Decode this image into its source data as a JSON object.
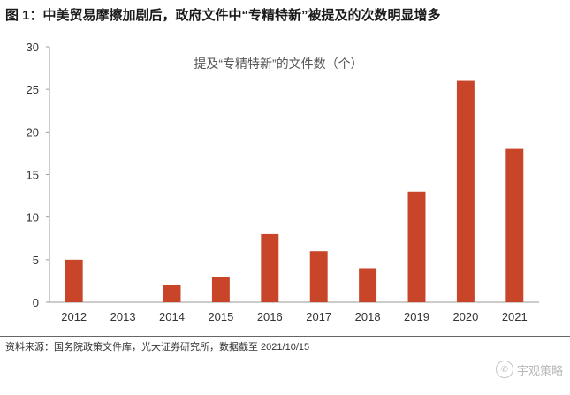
{
  "figure": {
    "title": "图 1：中美贸易摩擦加剧后，政府文件中“专精特新”被提及的次数明显增多",
    "source": "资料来源：国务院政策文件库，光大证券研究所，数据截至 2021/10/15"
  },
  "watermark": {
    "text": "宇观策略",
    "icon": "wechat-icon"
  },
  "chart_data": {
    "type": "bar",
    "title": "提及“专精特新”的文件数（个）",
    "categories": [
      "2012",
      "2013",
      "2014",
      "2015",
      "2016",
      "2017",
      "2018",
      "2019",
      "2020",
      "2021"
    ],
    "series": [
      {
        "values": [
          5,
          0,
          2,
          3,
          8,
          6,
          4,
          13,
          26,
          18
        ]
      }
    ],
    "yticks": [
      0,
      5,
      10,
      15,
      20,
      25,
      30
    ],
    "ylim": [
      0,
      30
    ],
    "color": "#c9452a",
    "grid": false,
    "legend": "none"
  }
}
